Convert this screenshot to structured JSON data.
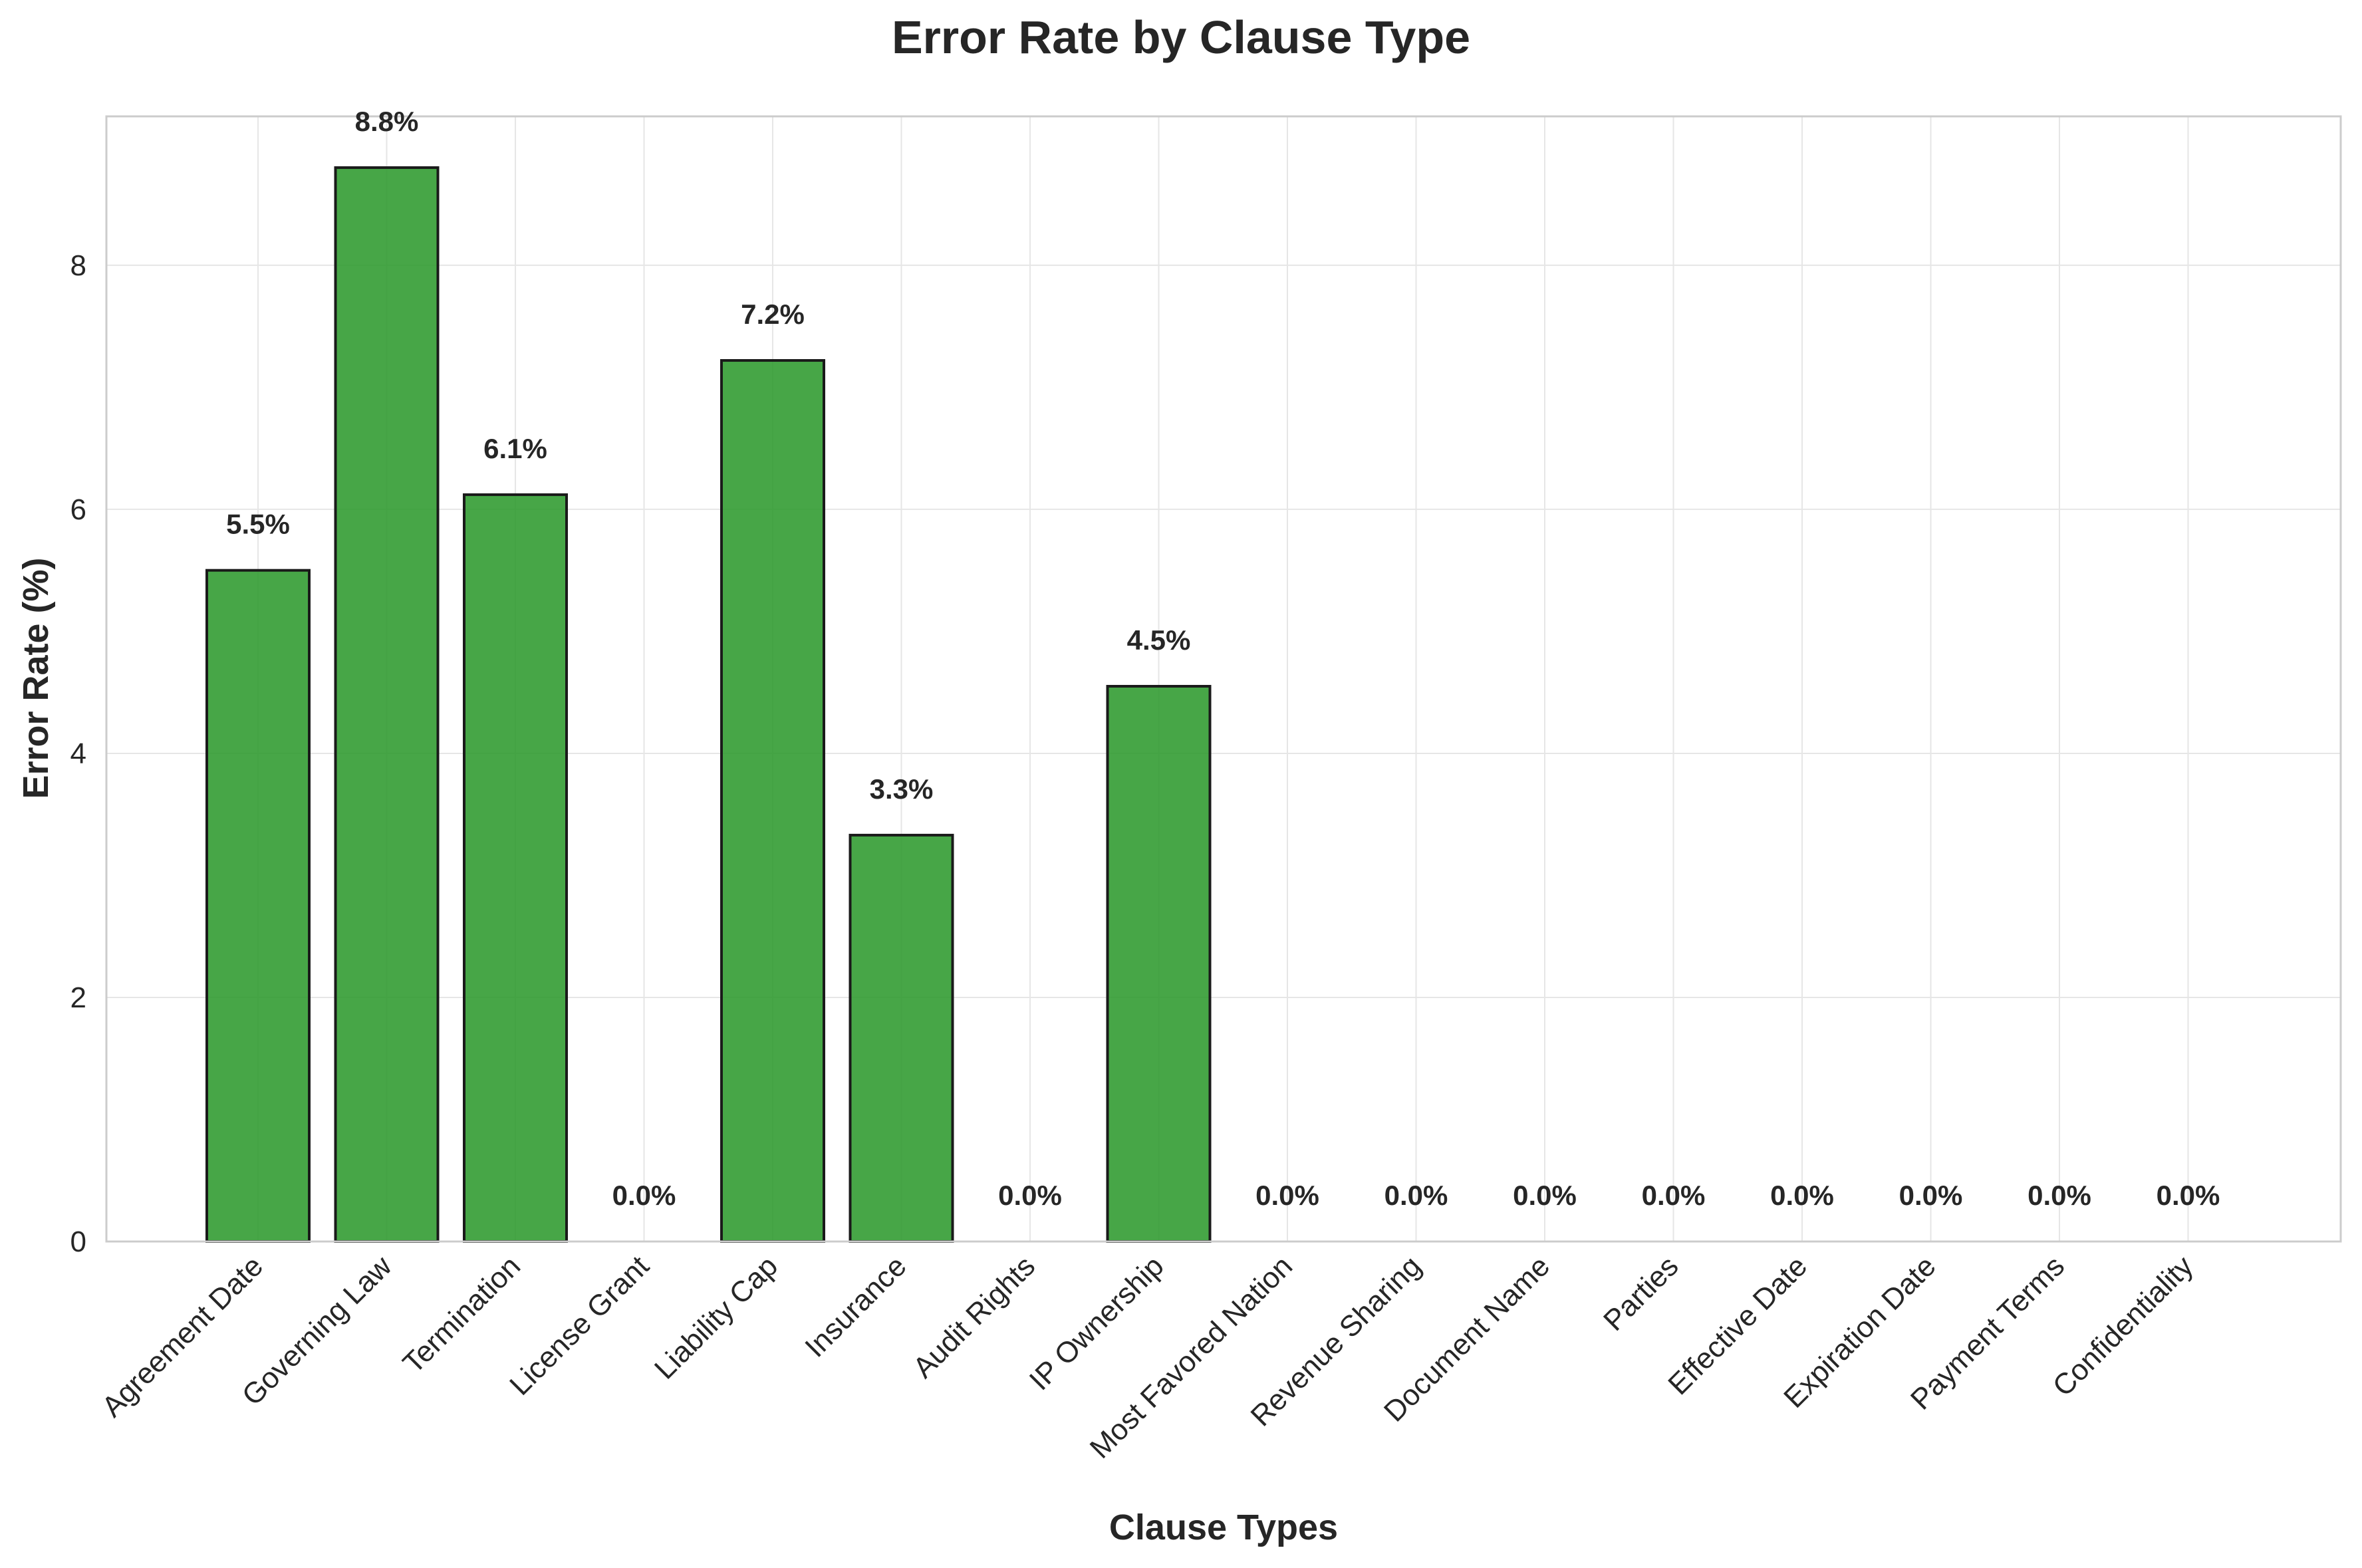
{
  "chart_data": {
    "type": "bar",
    "title": "Error Rate by Clause Type",
    "xlabel": "Clause Types",
    "ylabel": "Error Rate (%)",
    "categories": [
      "Agreement Date",
      "Governing Law",
      "Termination",
      "License Grant",
      "Liability Cap",
      "Insurance",
      "Audit Rights",
      "IP Ownership",
      "Most Favored Nation",
      "Revenue Sharing",
      "Document Name",
      "Parties",
      "Effective Date",
      "Expiration Date",
      "Payment Terms",
      "Confidentiality"
    ],
    "values": [
      5.5,
      8.8,
      6.12,
      0.0,
      7.22,
      3.33,
      0.0,
      4.55,
      0.0,
      0.0,
      0.0,
      0.0,
      0.0,
      0.0,
      0.0,
      0.0
    ],
    "data_labels": [
      "5.5%",
      "8.8%",
      "6.1%",
      "0.0%",
      "7.2%",
      "3.3%",
      "0.0%",
      "4.5%",
      "0.0%",
      "0.0%",
      "0.0%",
      "0.0%",
      "0.0%",
      "0.0%",
      "0.0%",
      "0.0%"
    ],
    "ylim": [
      0,
      9.22
    ],
    "yticks": [
      0,
      2,
      4,
      6,
      8
    ],
    "ytick_labels": [
      "0",
      "2",
      "4",
      "6",
      "8"
    ],
    "bar_color": "#2e9a2e",
    "edge_color": "#1a1a1a",
    "grid": true
  }
}
